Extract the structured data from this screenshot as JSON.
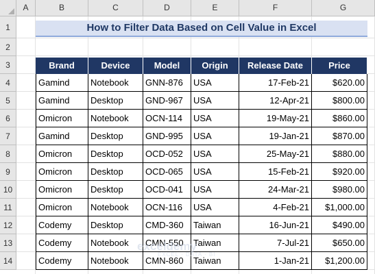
{
  "columns": [
    "A",
    "B",
    "C",
    "D",
    "E",
    "F",
    "G"
  ],
  "rows": [
    "1",
    "2",
    "3",
    "4",
    "5",
    "6",
    "7",
    "8",
    "9",
    "10",
    "11",
    "12",
    "13",
    "14"
  ],
  "title": "How to Filter Data Based on Cell Value in Excel",
  "table": {
    "headers": [
      "Brand",
      "Device",
      "Model",
      "Origin",
      "Release Date",
      "Price"
    ],
    "rows": [
      [
        "Gamind",
        "Notebook",
        "GNN-876",
        "USA",
        "17-Feb-21",
        "$620.00"
      ],
      [
        "Gamind",
        "Desktop",
        "GND-967",
        "USA",
        "12-Apr-21",
        "$800.00"
      ],
      [
        "Omicron",
        "Notebook",
        "OCN-114",
        "USA",
        "19-May-21",
        "$860.00"
      ],
      [
        "Gamind",
        "Desktop",
        "GND-995",
        "USA",
        "19-Jan-21",
        "$870.00"
      ],
      [
        "Omicron",
        "Desktop",
        "OCD-052",
        "USA",
        "25-May-21",
        "$880.00"
      ],
      [
        "Omicron",
        "Desktop",
        "OCD-065",
        "USA",
        "15-Feb-21",
        "$920.00"
      ],
      [
        "Omicron",
        "Desktop",
        "OCD-041",
        "USA",
        "24-Mar-21",
        "$980.00"
      ],
      [
        "Omicron",
        "Notebook",
        "OCN-116",
        "USA",
        "4-Feb-21",
        "$1,000.00"
      ],
      [
        "Codemy",
        "Desktop",
        "CMD-360",
        "Taiwan",
        "16-Jun-21",
        "$490.00"
      ],
      [
        "Codemy",
        "Notebook",
        "CMN-550",
        "Taiwan",
        "7-Jul-21",
        "$650.00"
      ],
      [
        "Codemy",
        "Notebook",
        "CMN-860",
        "Taiwan",
        "1-Jan-21",
        "$1,200.00"
      ]
    ]
  },
  "watermark": {
    "brand": "exceldemy",
    "tagline": "EXCEL · DATA · BI"
  },
  "colors": {
    "header_bg": "#203764",
    "title_bg": "#d9e1f2",
    "title_text": "#1f3864"
  }
}
